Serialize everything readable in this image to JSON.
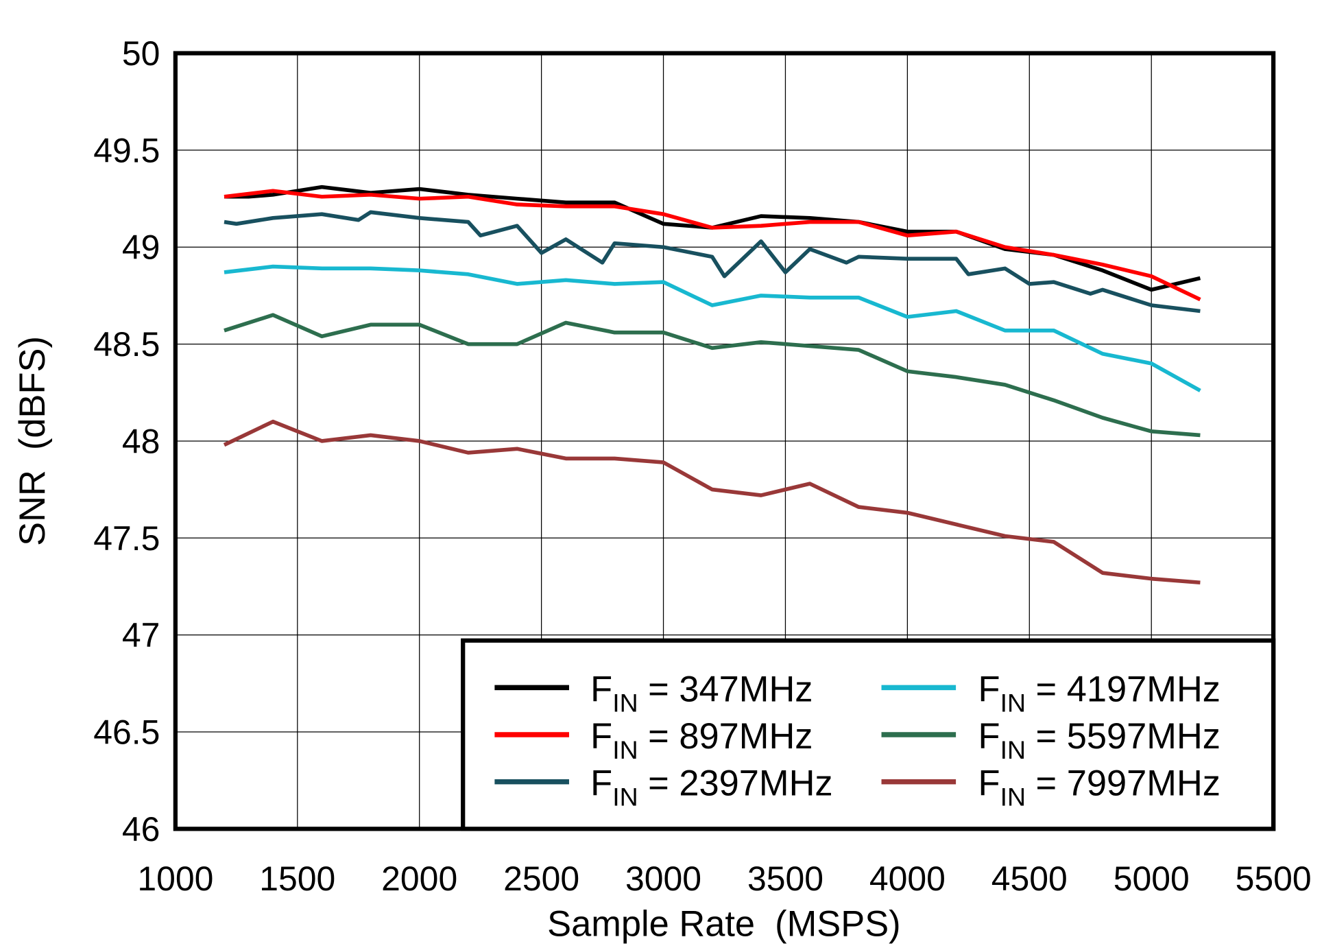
{
  "chart_data": {
    "type": "line",
    "title": "",
    "xlabel": "Sample Rate  (MSPS)",
    "ylabel": "SNR  (dBFS)",
    "xlim": [
      1000,
      5500
    ],
    "ylim": [
      46,
      50
    ],
    "xticks": [
      1000,
      1500,
      2000,
      2500,
      3000,
      3500,
      4000,
      4500,
      5000,
      5500
    ],
    "yticks": [
      46,
      46.5,
      47,
      47.5,
      48,
      48.5,
      49,
      49.5,
      50
    ],
    "ytick_labels": [
      "46",
      "46.5",
      "47",
      "47.5",
      "48",
      "48.5",
      "49",
      "49.5",
      "50"
    ],
    "grid": true,
    "legend_placement": "bottom-right",
    "series": [
      {
        "name": "F_IN = 347MHz",
        "label_main": "F",
        "label_sub": "IN",
        "label_rest": " = 347MHz",
        "color": "#000000",
        "x": [
          1200,
          1300,
          1400,
          1600,
          1800,
          2000,
          2200,
          2400,
          2600,
          2800,
          3000,
          3200,
          3400,
          3600,
          3800,
          4000,
          4200,
          4400,
          4600,
          4800,
          5000,
          5200
        ],
        "y": [
          49.26,
          49.26,
          49.27,
          49.31,
          49.28,
          49.3,
          49.27,
          49.25,
          49.23,
          49.23,
          49.12,
          49.1,
          49.16,
          49.15,
          49.13,
          49.08,
          49.08,
          48.99,
          48.96,
          48.88,
          48.78,
          48.84
        ]
      },
      {
        "name": "F_IN = 897MHz",
        "label_main": "F",
        "label_sub": "IN",
        "label_rest": " = 897MHz",
        "color": "#ff0000",
        "x": [
          1200,
          1400,
          1600,
          1800,
          2000,
          2200,
          2400,
          2600,
          2800,
          3000,
          3200,
          3400,
          3600,
          3800,
          4000,
          4200,
          4400,
          4600,
          4800,
          5000,
          5200
        ],
        "y": [
          49.26,
          49.29,
          49.26,
          49.27,
          49.25,
          49.26,
          49.22,
          49.21,
          49.21,
          49.17,
          49.1,
          49.11,
          49.13,
          49.13,
          49.06,
          49.08,
          49.0,
          48.96,
          48.91,
          48.85,
          48.73
        ]
      },
      {
        "name": "F_IN = 2397MHz",
        "label_main": "F",
        "label_sub": "IN",
        "label_rest": " = 2397MHz",
        "color": "#18505f",
        "x": [
          1200,
          1250,
          1400,
          1600,
          1750,
          1800,
          2000,
          2200,
          2250,
          2400,
          2500,
          2600,
          2750,
          2800,
          3000,
          3200,
          3250,
          3400,
          3500,
          3600,
          3750,
          3800,
          4000,
          4200,
          4250,
          4400,
          4500,
          4600,
          4750,
          4800,
          5000,
          5200
        ],
        "y": [
          49.13,
          49.12,
          49.15,
          49.17,
          49.14,
          49.18,
          49.15,
          49.13,
          49.06,
          49.11,
          48.97,
          49.04,
          48.92,
          49.02,
          49.0,
          48.95,
          48.85,
          49.03,
          48.87,
          48.99,
          48.92,
          48.95,
          48.94,
          48.94,
          48.86,
          48.89,
          48.81,
          48.82,
          48.76,
          48.78,
          48.7,
          48.67
        ]
      },
      {
        "name": "F_IN = 4197MHz",
        "label_main": "F",
        "label_sub": "IN",
        "label_rest": " = 4197MHz",
        "color": "#18b8d0",
        "x": [
          1200,
          1400,
          1600,
          1800,
          2000,
          2200,
          2400,
          2600,
          2800,
          3000,
          3200,
          3400,
          3600,
          3800,
          4000,
          4200,
          4400,
          4600,
          4800,
          5000,
          5200
        ],
        "y": [
          48.87,
          48.9,
          48.89,
          48.89,
          48.88,
          48.86,
          48.81,
          48.83,
          48.81,
          48.82,
          48.7,
          48.75,
          48.74,
          48.74,
          48.64,
          48.67,
          48.57,
          48.57,
          48.45,
          48.4,
          48.26
        ]
      },
      {
        "name": "F_IN = 5597MHz",
        "label_main": "F",
        "label_sub": "IN",
        "label_rest": " = 5597MHz",
        "color": "#2d6e4e",
        "x": [
          1200,
          1400,
          1600,
          1800,
          2000,
          2200,
          2400,
          2600,
          2800,
          3000,
          3200,
          3400,
          3600,
          3800,
          4000,
          4200,
          4400,
          4600,
          4800,
          5000,
          5200
        ],
        "y": [
          48.57,
          48.65,
          48.54,
          48.6,
          48.6,
          48.5,
          48.5,
          48.61,
          48.56,
          48.56,
          48.48,
          48.51,
          48.49,
          48.47,
          48.36,
          48.33,
          48.29,
          48.21,
          48.12,
          48.05,
          48.03
        ]
      },
      {
        "name": "F_IN = 7997MHz",
        "label_main": "F",
        "label_sub": "IN",
        "label_rest": " = 7997MHz",
        "color": "#993838",
        "x": [
          1200,
          1400,
          1600,
          1800,
          2000,
          2200,
          2400,
          2600,
          2800,
          3000,
          3200,
          3400,
          3600,
          3800,
          4000,
          4200,
          4400,
          4600,
          4800,
          5000,
          5200
        ],
        "y": [
          47.98,
          48.1,
          48.0,
          48.03,
          48.0,
          47.94,
          47.96,
          47.91,
          47.91,
          47.89,
          47.75,
          47.72,
          47.78,
          47.66,
          47.63,
          47.57,
          47.51,
          47.48,
          47.32,
          47.29,
          47.27
        ]
      }
    ]
  }
}
